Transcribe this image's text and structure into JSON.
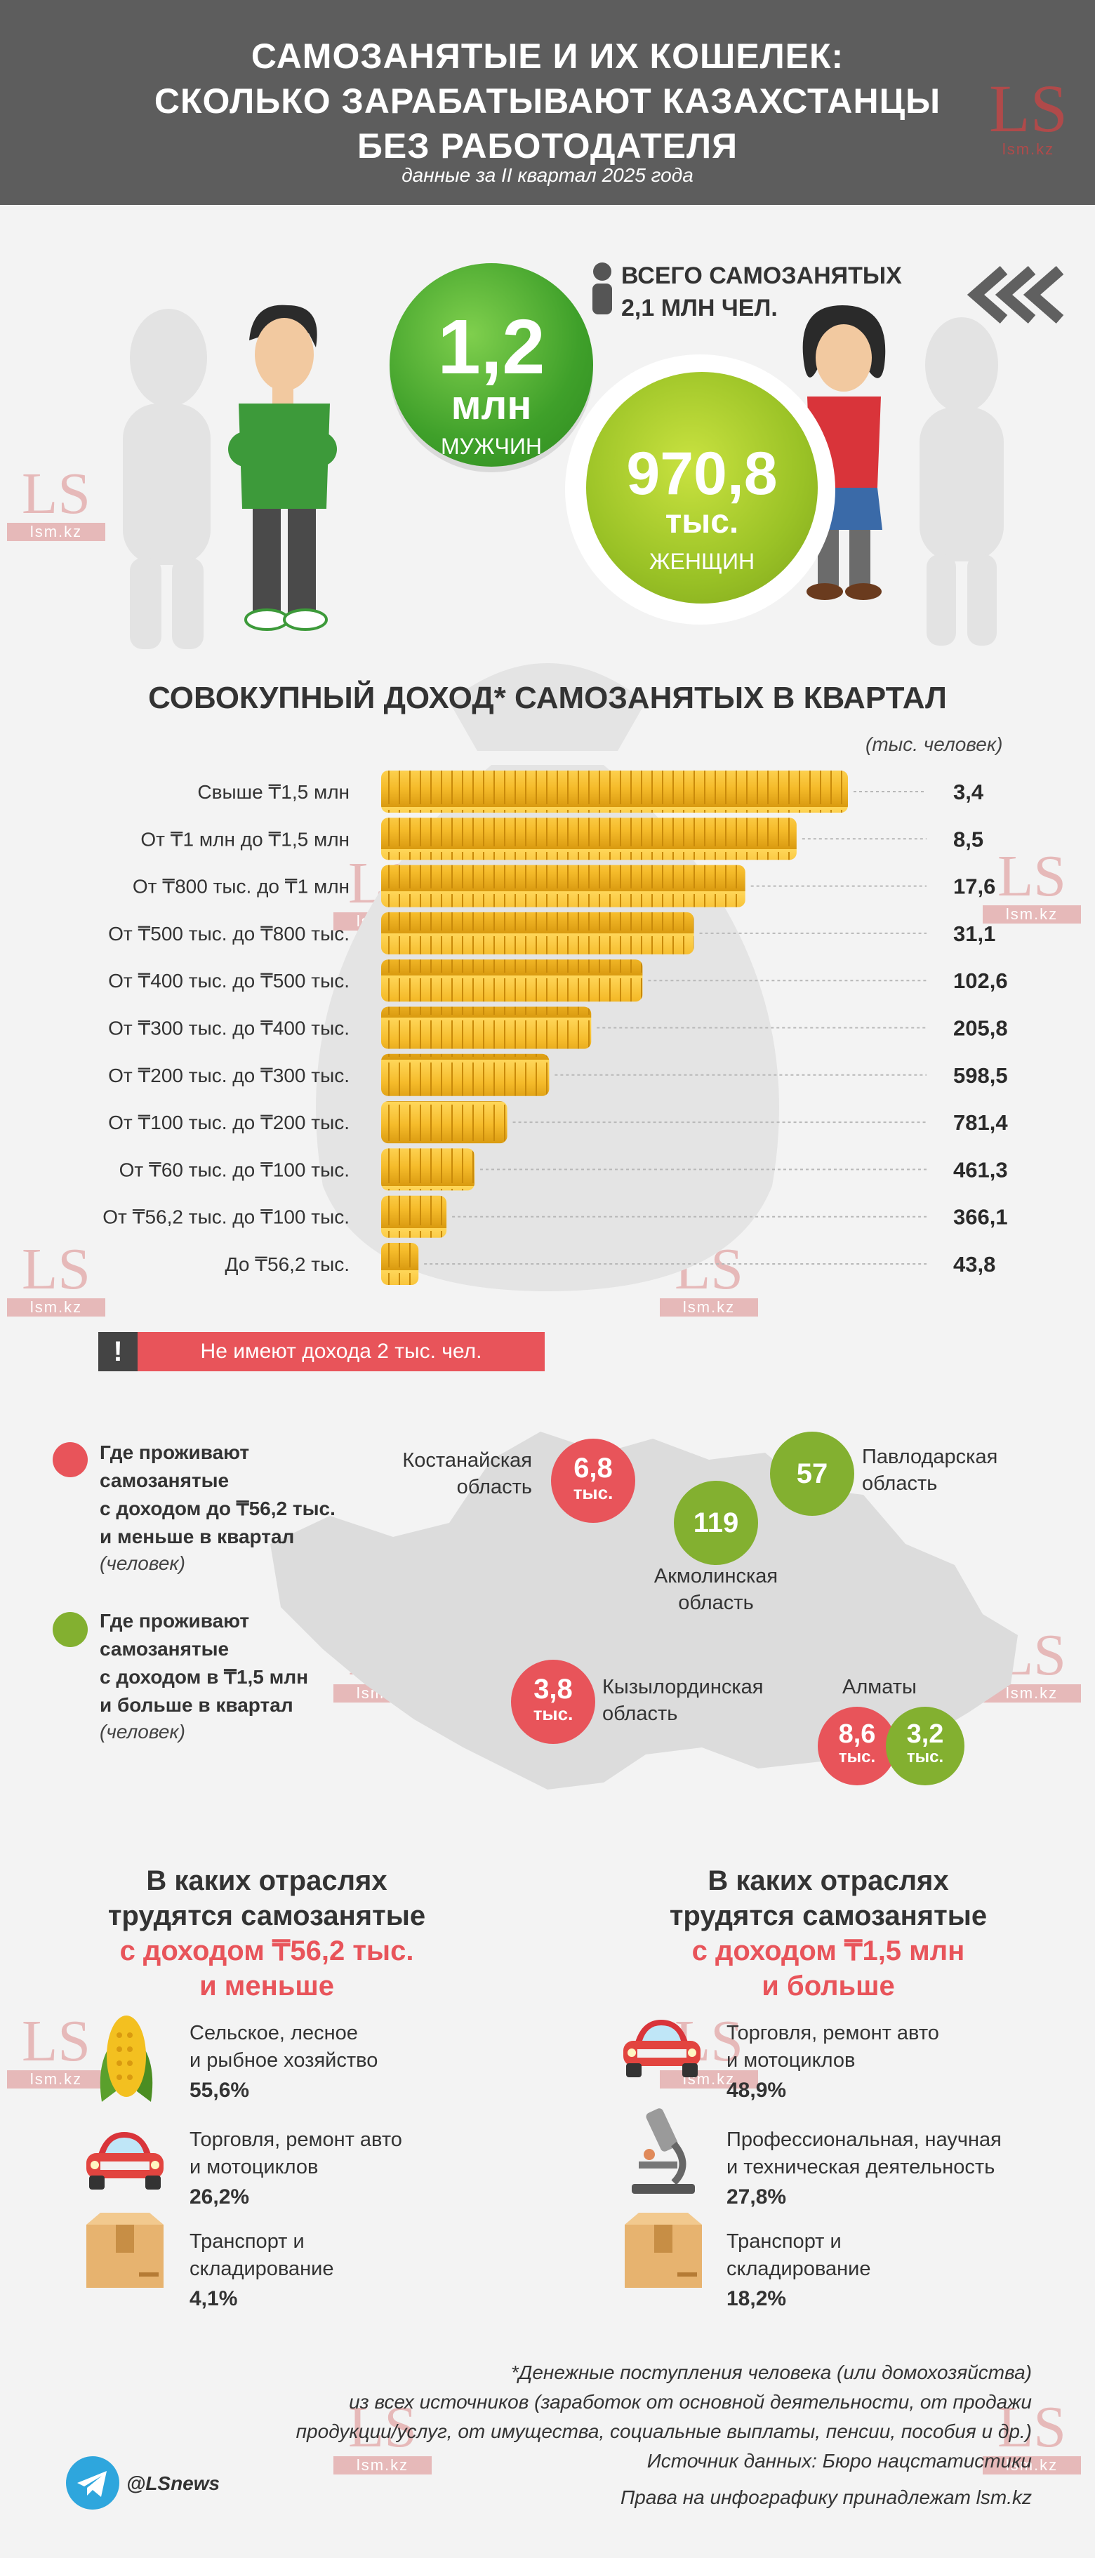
{
  "header": {
    "title": "САМОЗАНЯТЫЕ И ИХ КОШЕЛЕК:\nСКОЛЬКО ЗАРАБАТЫВАЮТ КАЗАХСТАНЦЫ\nБЕЗ РАБОТОДАТЕЛЯ",
    "subtitle": "данные за II квартал 2025 года",
    "logo": "LS",
    "logo_site": "lsm.kz"
  },
  "watermark": {
    "logo": "LS",
    "site": "lsm.kz",
    "diag": "lsm.kz"
  },
  "summary": {
    "total_label": "ВСЕГО САМОЗАНЯТЫХ\n2,1 МЛН ЧЕЛ.",
    "male": {
      "value": "1,2",
      "unit": "млн",
      "label": "МУЖЧИН"
    },
    "female": {
      "value": "970,8",
      "unit": "тыс.",
      "label": "ЖЕНЩИН"
    }
  },
  "chart_data": {
    "type": "bar",
    "title": "СОВОКУПНЫЙ ДОХОД* САМОЗАНЯТЫХ В КВАРТАЛ",
    "unit": "(тыс. человек)",
    "categories": [
      "Свыше ₸1,5 млн",
      "От ₸1 млн до ₸1,5 млн",
      "От ₸800 тыс. до ₸1 млн",
      "От ₸500 тыс. до ₸800 тыс.",
      "От ₸400 тыс. до ₸500 тыс.",
      "От ₸300 тыс. до ₸400 тыс.",
      "От ₸200 тыс. до ₸300 тыс.",
      "От ₸100 тыс. до ₸200 тыс.",
      "От ₸60 тыс. до ₸100 тыс.",
      "От ₸56,2 тыс. до ₸100 тыс.",
      "До ₸56,2 тыс."
    ],
    "values": [
      3.4,
      8.5,
      17.6,
      31.1,
      102.6,
      205.8,
      598.5,
      781.4,
      461.3,
      366.1,
      43.8
    ],
    "value_labels": [
      "3,4",
      "8,5",
      "17,6",
      "31,1",
      "102,6",
      "205,8",
      "598,5",
      "781,4",
      "461,3",
      "366,1",
      "43,8"
    ],
    "bar_fill_fraction": [
      1.0,
      0.89,
      0.78,
      0.67,
      0.56,
      0.45,
      0.36,
      0.27,
      0.2,
      0.14,
      0.08
    ],
    "bar_color": "#f5bb2a",
    "note": "Не имеют дохода 2 тыс. чел."
  },
  "regions": {
    "legend_low": "Где проживают\nсамозанятые\nс доходом до ₸56,2 тыс.\nи меньше в квартал",
    "legend_low_note": "(человек)",
    "legend_high": "Где проживают\nсамозанятые\nс доходом в ₸1,5 млн\nи больше в квартал",
    "legend_high_note": "(человек)",
    "kostanay": {
      "name": "Костанайская\nобласть",
      "value": "6,8",
      "unit": "тыс."
    },
    "pavlodar": {
      "name": "Павлодарская\nобласть",
      "value": "57"
    },
    "akmola": {
      "name": "Акмолинская\nобласть",
      "value": "119"
    },
    "kyzylorda": {
      "name": "Кызылординская\nобласть",
      "value": "3,8",
      "unit": "тыс."
    },
    "almaty": {
      "name": "Алматы",
      "value_low": "8,6",
      "unit_low": "тыс.",
      "value_high": "3,2",
      "unit_high": "тыс."
    },
    "color_low": "#e8545a",
    "color_high": "#83b030"
  },
  "industries": {
    "left": {
      "title_1": "В каких отраслях",
      "title_2": "трудятся самозанятые",
      "title_3": "с доходом ₸56,2 тыс.",
      "title_4": "и меньше",
      "items": [
        {
          "icon": "corn-icon",
          "name": "Сельское, лесное\nи рыбное хозяйство",
          "pct": "55,6%"
        },
        {
          "icon": "car-icon",
          "name": "Торговля, ремонт авто\nи мотоциклов",
          "pct": "26,2%"
        },
        {
          "icon": "box-icon",
          "name": "Транспорт и\nскладирование",
          "pct": "4,1%"
        }
      ]
    },
    "right": {
      "title_1": "В каких отраслях",
      "title_2": "трудятся самозанятые",
      "title_3": "с доходом ₸1,5 млн",
      "title_4": "и больше",
      "items": [
        {
          "icon": "car-icon",
          "name": "Торговля, ремонт авто\nи мотоциклов",
          "pct": "48,9%"
        },
        {
          "icon": "microscope-icon",
          "name": "Профессиональная, научная\nи техническая деятельность",
          "pct": "27,8%"
        },
        {
          "icon": "box-icon",
          "name": "Транспорт и\nскладирование",
          "pct": "18,2%"
        }
      ]
    }
  },
  "footer": {
    "note_1": "*Денежные поступления человека (или домохозяйства)",
    "note_2": "из всех источников (заработок от основной деятельности, от продажи",
    "note_3": "продукции/услуг, от имущества, социальные выплаты, пенсии, пособия и др.)",
    "source": "Источник данных: Бюро нацстатистики",
    "rights": "Права на инфографику принадлежат lsm.kz",
    "telegram": "@LSnews"
  }
}
